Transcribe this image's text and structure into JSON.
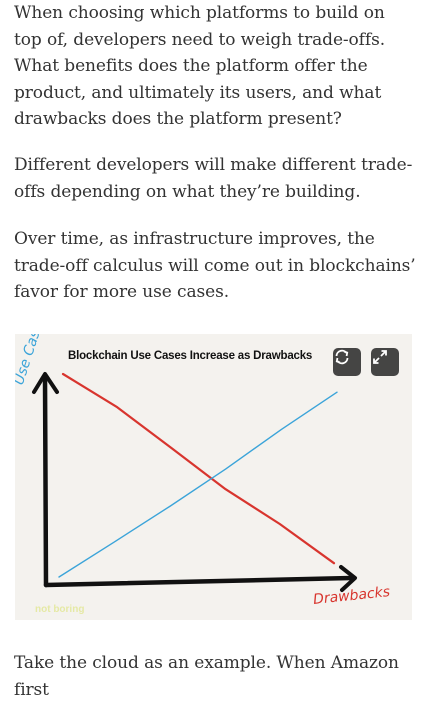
{
  "article": {
    "para1": "When choosing which platforms to build on top of, developers need to weigh trade-offs. What benefits does the platform offer the product, and ultimately its users, and what drawbacks does the platform present?",
    "para2": "Different developers will make different trade-offs depending on what they’re building.",
    "para3": "Over time, as infrastructure improves, the trade-off calculus will come out in blockchains’ favor for more use cases.",
    "para4": "Take the cloud as an example. When Amazon first"
  },
  "figure": {
    "title": "Blockchain Use Cases Increase as Drawbacks",
    "watermark": "not boring",
    "rotate_icon": "rotate-icon",
    "expand_icon": "expand-icon"
  },
  "chart_data": {
    "type": "line",
    "title": "Blockchain Use Cases Increase as Drawbacks",
    "xlabel": "Drawbacks",
    "ylabel": "Use Cases",
    "series": [
      {
        "color": "#d8352e",
        "x": [
          0,
          0.2,
          0.4,
          0.6,
          0.8,
          1.0
        ],
        "y": [
          1.0,
          0.84,
          0.63,
          0.43,
          0.25,
          0.06
        ]
      },
      {
        "color": "#3ba4d9",
        "x": [
          0,
          0.2,
          0.4,
          0.6,
          0.8,
          1.0
        ],
        "y": [
          0.03,
          0.22,
          0.4,
          0.6,
          0.8,
          1.0
        ]
      }
    ],
    "colors": {
      "axis": "#111111",
      "red": "#d8352e",
      "blue": "#3ba4d9"
    }
  }
}
